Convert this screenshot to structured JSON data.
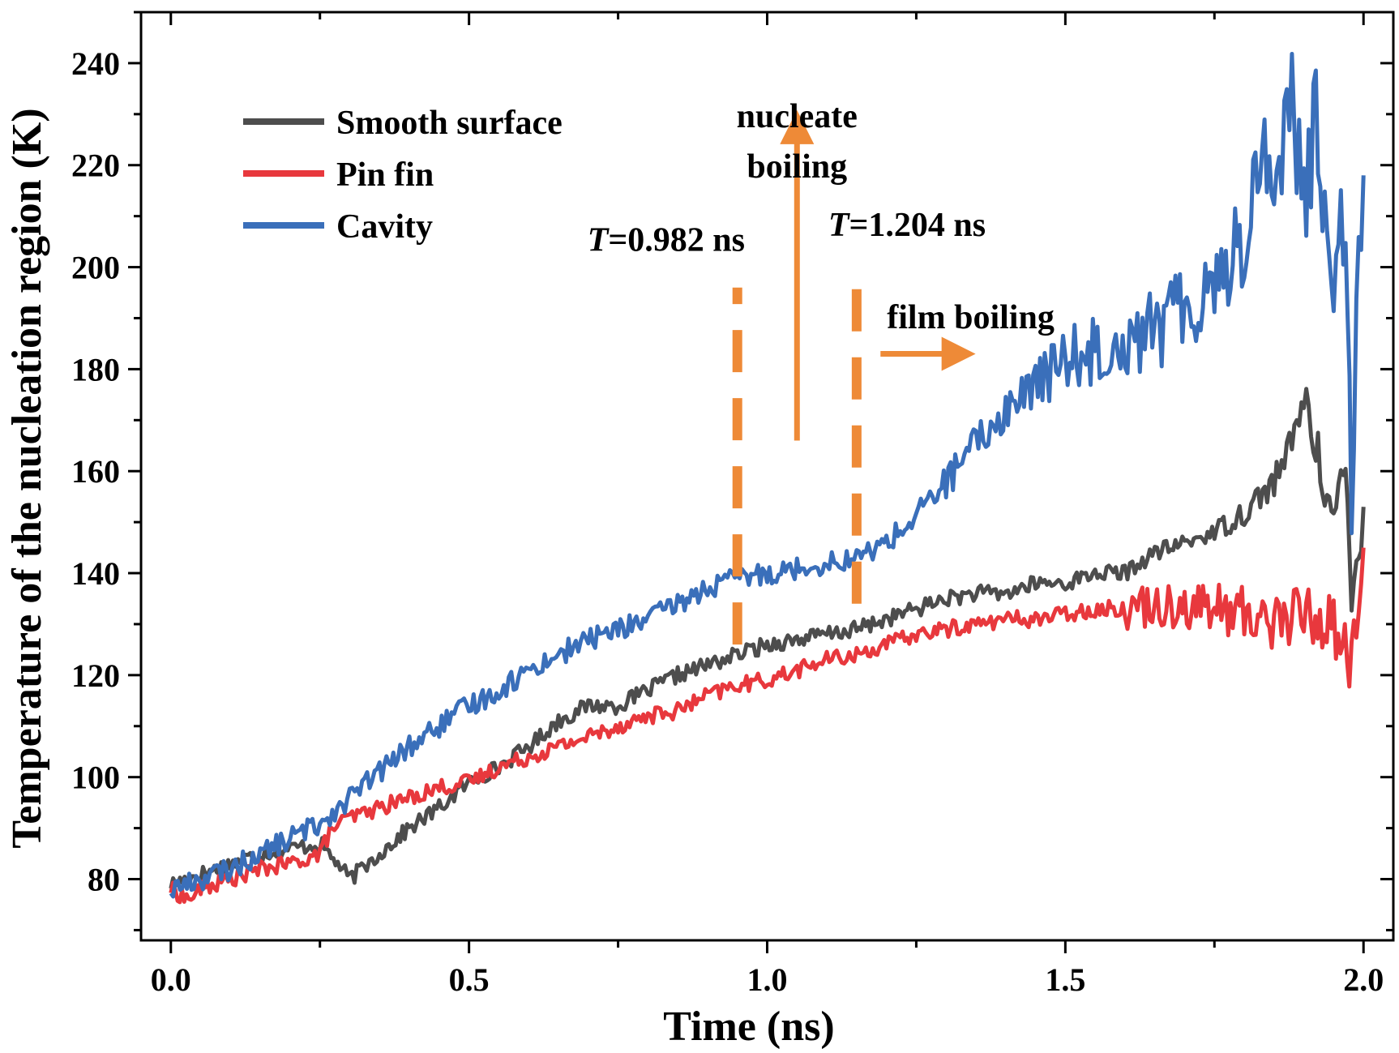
{
  "chart_data": {
    "type": "line",
    "xlabel": "Time (ns)",
    "ylabel": "Temperature of the nucleation region (K)",
    "xlim": [
      -0.05,
      2.05
    ],
    "ylim": [
      68,
      250
    ],
    "xticks": [
      0.0,
      0.5,
      1.0,
      1.5,
      2.0
    ],
    "xtick_labels": [
      "0.0",
      "0.5",
      "1.0",
      "1.5",
      "2.0"
    ],
    "yticks": [
      80,
      100,
      120,
      140,
      160,
      180,
      200,
      220,
      240
    ],
    "ytick_labels": [
      "80",
      "100",
      "120",
      "140",
      "160",
      "180",
      "200",
      "220",
      "240"
    ],
    "grid": false,
    "legend_position": "top-left",
    "series": [
      {
        "name": "Smooth surface",
        "color": "#4d4d4d",
        "x": [
          0.0,
          0.05,
          0.1,
          0.15,
          0.2,
          0.25,
          0.28,
          0.3,
          0.32,
          0.35,
          0.4,
          0.45,
          0.5,
          0.55,
          0.6,
          0.65,
          0.7,
          0.75,
          0.8,
          0.85,
          0.9,
          0.95,
          1.0,
          1.05,
          1.1,
          1.15,
          1.2,
          1.25,
          1.3,
          1.35,
          1.4,
          1.45,
          1.5,
          1.55,
          1.6,
          1.65,
          1.7,
          1.75,
          1.8,
          1.85,
          1.88,
          1.9,
          1.92,
          1.95,
          1.97,
          1.98,
          2.0
        ],
        "y": [
          79,
          81,
          83,
          85,
          86,
          87,
          83,
          80,
          82,
          85,
          90,
          94,
          99,
          102,
          106,
          111,
          114,
          114,
          117,
          120,
          122,
          124,
          126,
          127,
          128,
          129,
          131,
          133,
          135,
          136,
          136,
          138,
          138,
          140,
          140,
          144,
          146,
          148,
          152,
          158,
          165,
          175,
          165,
          150,
          160,
          134,
          153
        ]
      },
      {
        "name": "Pin fin",
        "color": "#e8383d",
        "x": [
          0.0,
          0.03,
          0.05,
          0.1,
          0.15,
          0.2,
          0.25,
          0.27,
          0.3,
          0.35,
          0.4,
          0.45,
          0.5,
          0.55,
          0.6,
          0.65,
          0.7,
          0.75,
          0.8,
          0.85,
          0.9,
          0.95,
          1.0,
          1.05,
          1.1,
          1.15,
          1.2,
          1.25,
          1.3,
          1.35,
          1.4,
          1.45,
          1.5,
          1.55,
          1.6,
          1.65,
          1.7,
          1.75,
          1.8,
          1.85,
          1.9,
          1.95,
          1.98,
          2.0
        ],
        "y": [
          78,
          76,
          78,
          80,
          82,
          83,
          85,
          90,
          92,
          94,
          96,
          98,
          99,
          102,
          104,
          106,
          108,
          110,
          112,
          113,
          116,
          118,
          119,
          121,
          123,
          124,
          126,
          128,
          129,
          130,
          131,
          131,
          132,
          133,
          133,
          134,
          134,
          133,
          132,
          131,
          132,
          130,
          122,
          145
        ]
      },
      {
        "name": "Cavity",
        "color": "#3a6fba",
        "x": [
          0.0,
          0.05,
          0.1,
          0.15,
          0.2,
          0.25,
          0.3,
          0.35,
          0.4,
          0.45,
          0.5,
          0.55,
          0.6,
          0.65,
          0.7,
          0.75,
          0.8,
          0.85,
          0.9,
          0.95,
          1.0,
          1.05,
          1.1,
          1.15,
          1.2,
          1.25,
          1.3,
          1.35,
          1.4,
          1.45,
          1.5,
          1.55,
          1.6,
          1.65,
          1.7,
          1.75,
          1.8,
          1.83,
          1.85,
          1.88,
          1.9,
          1.92,
          1.95,
          1.97,
          1.98,
          2.0
        ],
        "y": [
          78,
          80,
          82,
          85,
          88,
          91,
          96,
          101,
          106,
          110,
          114,
          117,
          121,
          124,
          127,
          129,
          131,
          134,
          137,
          139,
          140,
          141,
          142,
          143,
          146,
          151,
          158,
          165,
          172,
          177,
          182,
          184,
          186,
          188,
          192,
          198,
          205,
          225,
          215,
          235,
          210,
          228,
          200,
          215,
          160,
          218
        ]
      }
    ],
    "annotations": [
      {
        "label_italic": "T",
        "label_rest": "=0.982 ns",
        "type": "vline",
        "x": 0.95,
        "y_range": [
          126,
          196
        ],
        "color": "#ee8a37"
      },
      {
        "label_italic": "T",
        "label_rest": "=1.204 ns",
        "type": "vline",
        "x": 1.15,
        "y_range": [
          134,
          199
        ],
        "color": "#ee8a37"
      },
      {
        "label_lines": [
          "nucleate",
          "boiling"
        ],
        "type": "arrow-up",
        "x": 1.05,
        "y_from": 166,
        "y_to": 230,
        "color": "#ee8a37"
      },
      {
        "label": "film boiling",
        "type": "arrow-right",
        "x_from": 1.19,
        "x_to": 1.34,
        "y": 183,
        "color": "#ee8a37"
      }
    ]
  }
}
